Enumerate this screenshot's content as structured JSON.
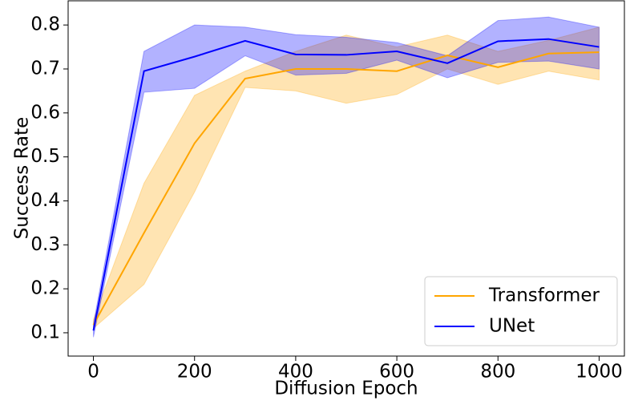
{
  "chart_data": {
    "type": "line",
    "xlabel": "Diffusion Epoch",
    "ylabel": "Success Rate",
    "x": [
      0,
      100,
      200,
      300,
      400,
      500,
      600,
      700,
      800,
      900,
      1000
    ],
    "series": [
      {
        "name": "Transformer",
        "color": "#ffa500",
        "values": [
          0.118,
          0.327,
          0.531,
          0.678,
          0.7,
          0.7,
          0.695,
          0.731,
          0.704,
          0.735,
          0.738
        ],
        "lower": [
          0.11,
          0.21,
          0.42,
          0.658,
          0.65,
          0.622,
          0.642,
          0.7,
          0.665,
          0.695,
          0.675
        ],
        "upper": [
          0.13,
          0.44,
          0.64,
          0.695,
          0.74,
          0.777,
          0.75,
          0.777,
          0.74,
          0.765,
          0.795
        ]
      },
      {
        "name": "UNet",
        "color": "#0000ff",
        "values": [
          0.105,
          0.695,
          0.728,
          0.764,
          0.733,
          0.732,
          0.74,
          0.713,
          0.763,
          0.768,
          0.75
        ],
        "lower": [
          0.09,
          0.647,
          0.656,
          0.73,
          0.686,
          0.69,
          0.72,
          0.68,
          0.715,
          0.718,
          0.7
        ],
        "upper": [
          0.12,
          0.74,
          0.8,
          0.795,
          0.778,
          0.772,
          0.76,
          0.73,
          0.81,
          0.818,
          0.795
        ]
      }
    ],
    "xlim": [
      -50,
      1050
    ],
    "ylim": [
      0.047,
      0.855
    ],
    "xticks": [
      0,
      200,
      400,
      600,
      800,
      1000
    ],
    "yticks": [
      0.1,
      0.2,
      0.3,
      0.4,
      0.5,
      0.6,
      0.7,
      0.8
    ],
    "band_opacity": 0.3,
    "legend": "lower-right"
  }
}
